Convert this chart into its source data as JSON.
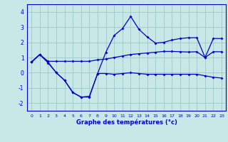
{
  "xlabel": "Graphe des températures (°c)",
  "background_color": "#c8e8e8",
  "grid_color": "#a0c8c8",
  "line_color": "#0000cc",
  "spine_color": "#0000cc",
  "xlim": [
    -0.5,
    23.5
  ],
  "ylim": [
    -2.5,
    4.5
  ],
  "yticks": [
    -2,
    -1,
    0,
    1,
    2,
    3,
    4
  ],
  "xticks": [
    0,
    1,
    2,
    3,
    4,
    5,
    6,
    7,
    8,
    9,
    10,
    11,
    12,
    13,
    14,
    15,
    16,
    17,
    18,
    19,
    20,
    21,
    22,
    23
  ],
  "line_top_x": [
    0,
    1,
    2,
    3,
    4,
    5,
    6,
    7,
    8,
    9,
    10,
    11,
    12,
    13,
    14,
    15,
    16,
    17,
    18,
    19,
    20,
    21,
    22,
    23
  ],
  "line_top_y": [
    0.7,
    1.2,
    0.7,
    0.0,
    -0.5,
    -1.3,
    -1.6,
    -1.55,
    -0.05,
    1.35,
    2.45,
    2.9,
    3.7,
    2.85,
    2.35,
    1.95,
    2.0,
    2.15,
    2.25,
    2.3,
    2.3,
    1.0,
    2.25,
    2.25
  ],
  "line_mid_x": [
    0,
    1,
    2,
    3,
    4,
    5,
    6,
    7,
    8,
    9,
    10,
    11,
    12,
    13,
    14,
    15,
    16,
    17,
    18,
    19,
    20,
    21,
    22,
    23
  ],
  "line_mid_y": [
    0.7,
    1.2,
    0.75,
    0.75,
    0.75,
    0.75,
    0.75,
    0.75,
    0.85,
    0.9,
    1.0,
    1.1,
    1.2,
    1.25,
    1.3,
    1.35,
    1.4,
    1.4,
    1.38,
    1.36,
    1.38,
    1.0,
    1.38,
    1.38
  ],
  "line_bot_x": [
    0,
    1,
    2,
    3,
    4,
    5,
    6,
    7,
    8,
    9,
    10,
    11,
    12,
    13,
    14,
    15,
    16,
    17,
    18,
    19,
    20,
    21,
    22,
    23
  ],
  "line_bot_y": [
    0.7,
    1.2,
    0.65,
    0.0,
    -0.5,
    -1.3,
    -1.6,
    -1.6,
    -0.05,
    -0.05,
    -0.1,
    -0.05,
    0.0,
    -0.05,
    -0.1,
    -0.1,
    -0.1,
    -0.1,
    -0.1,
    -0.1,
    -0.1,
    -0.2,
    -0.3,
    -0.35
  ]
}
